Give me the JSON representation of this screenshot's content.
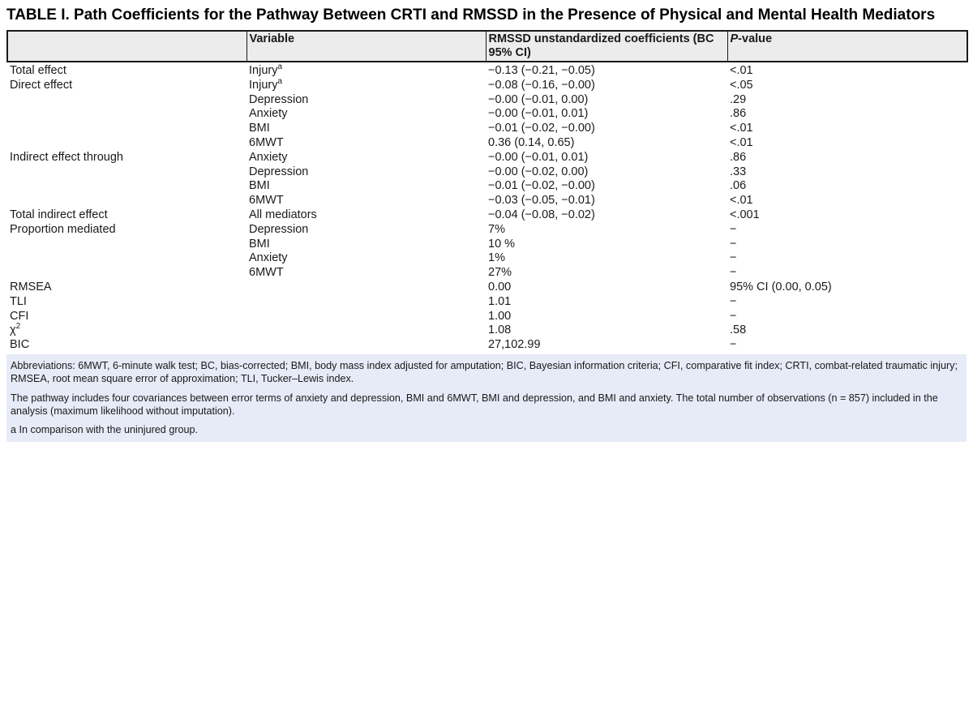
{
  "title": "TABLE I. Path Coefficients for the Pathway Between CRTI and RMSSD in the Presence of Physical and Mental Health Mediators",
  "colors": {
    "header_bg": "#ececec",
    "footnote_bg": "#e7eaf7",
    "border": "#1a1a1a"
  },
  "table": {
    "headers": {
      "c0": "",
      "c1": "Variable",
      "c2": "RMSSD unstandardized coefficients (BC 95% CI)",
      "c3_italic": "P",
      "c3_rest": "-value"
    },
    "rows": [
      {
        "label": "Total effect",
        "variable": "Injury",
        "variable_sup": "a",
        "coef": "−0.13 (−0.21, −0.05)",
        "p": "<.01"
      },
      {
        "label": "Direct effect",
        "variable": "Injury",
        "variable_sup": "a",
        "coef": "−0.08 (−0.16, −0.00)",
        "p": "<.05"
      },
      {
        "label": "",
        "variable": "Depression",
        "coef": "−0.00 (−0.01, 0.00)",
        "p": ".29"
      },
      {
        "label": "",
        "variable": "Anxiety",
        "coef": "−0.00 (−0.01, 0.01)",
        "p": ".86"
      },
      {
        "label": "",
        "variable": "BMI",
        "coef": "−0.01 (−0.02, −0.00)",
        "p": "<.01"
      },
      {
        "label": "",
        "variable": "6MWT",
        "coef": "0.36 (0.14, 0.65)",
        "p": "<.01"
      },
      {
        "label": "Indirect effect through",
        "variable": "Anxiety",
        "coef": "−0.00 (−0.01, 0.01)",
        "p": ".86"
      },
      {
        "label": "",
        "variable": "Depression",
        "coef": "−0.00 (−0.02, 0.00)",
        "p": ".33"
      },
      {
        "label": "",
        "variable": "BMI",
        "coef": "−0.01 (−0.02, −0.00)",
        "p": ".06"
      },
      {
        "label": "",
        "variable": "6MWT",
        "coef": "−0.03 (−0.05, −0.01)",
        "p": "<.01"
      },
      {
        "label": "Total indirect effect",
        "variable": "All mediators",
        "coef": "−0.04 (−0.08, −0.02)",
        "p": "<.001"
      },
      {
        "label": "Proportion mediated",
        "variable": "Depression",
        "coef": "7%",
        "p": "−"
      },
      {
        "label": "",
        "variable": "BMI",
        "coef": "10 %",
        "p": "−"
      },
      {
        "label": "",
        "variable": "Anxiety",
        "coef": "1%",
        "p": "−"
      },
      {
        "label": "",
        "variable": "6MWT",
        "coef": "27%",
        "p": "−"
      },
      {
        "label": "RMSEA",
        "variable": "",
        "coef": "0.00",
        "p": "95% CI (0.00, 0.05)"
      },
      {
        "label": "TLI",
        "variable": "",
        "coef": "1.01",
        "p": "−"
      },
      {
        "label": "CFI",
        "variable": "",
        "coef": "1.00",
        "p": "−"
      },
      {
        "label": "χ",
        "label_sup": "2",
        "variable": "",
        "coef": "1.08",
        "p": ".58"
      },
      {
        "label": "BIC",
        "variable": "",
        "coef": "27,102.99",
        "p": "−"
      }
    ]
  },
  "footnotes": [
    "Abbreviations: 6MWT, 6-minute walk test; BC, bias-corrected; BMI, body mass index adjusted for amputation; BIC, Bayesian information criteria; CFI, comparative fit index; CRTI, combat-related traumatic injury; RMSEA, root mean square error of approximation; TLI, Tucker–Lewis index.",
    "The pathway includes four covariances between error terms of anxiety and depression, BMI and 6MWT, BMI and depression, and BMI and anxiety. The total number of observations (n = 857) included in the analysis (maximum likelihood without imputation).",
    "a In comparison with the uninjured group."
  ]
}
